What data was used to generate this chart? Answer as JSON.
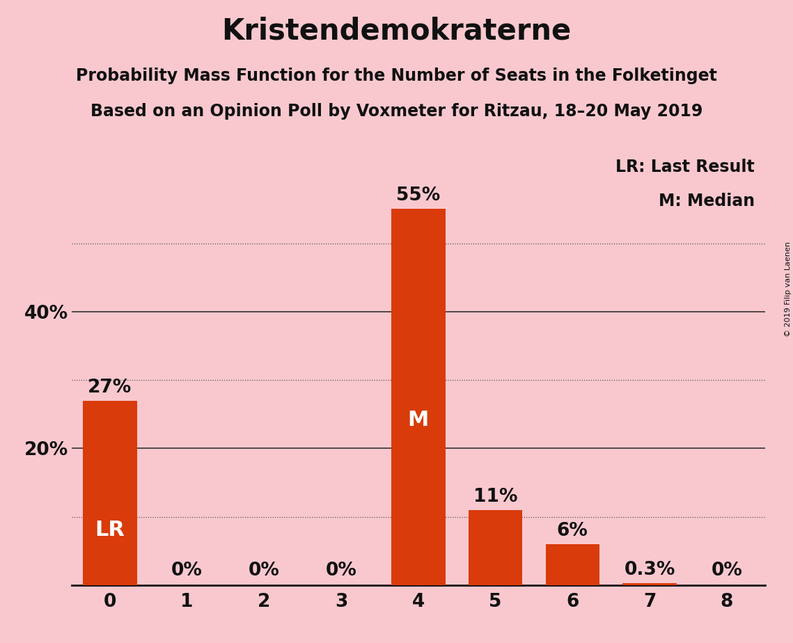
{
  "title": "Kristendemokraterne",
  "subtitle1": "Probability Mass Function for the Number of Seats in the Folketinget",
  "subtitle2": "Based on an Opinion Poll by Voxmeter for Ritzau, 18–20 May 2019",
  "copyright": "© 2019 Filip van Laenen",
  "categories": [
    0,
    1,
    2,
    3,
    4,
    5,
    6,
    7,
    8
  ],
  "values": [
    0.27,
    0.0,
    0.0,
    0.0,
    0.55,
    0.11,
    0.06,
    0.003,
    0.0
  ],
  "labels": [
    "27%",
    "0%",
    "0%",
    "0%",
    "55%",
    "11%",
    "6%",
    "0.3%",
    "0%"
  ],
  "bar_color": "#D93B0A",
  "background_color": "#F9C8CF",
  "text_color": "#111111",
  "solid_grid_color": "#333333",
  "dotted_grid_color": "#555555",
  "title_fontsize": 30,
  "subtitle_fontsize": 17,
  "label_fontsize": 19,
  "tick_fontsize": 19,
  "solid_yticks": [
    0.2,
    0.4
  ],
  "dotted_yticks": [
    0.1,
    0.3,
    0.5
  ],
  "ytick_display": [
    0.2,
    0.4
  ],
  "ylim": [
    0,
    0.63
  ],
  "legend_text1": "LR: Last Result",
  "legend_text2": "M: Median",
  "lr_bar": 0,
  "median_bar": 4,
  "white": "#ffffff",
  "dark": "#111111"
}
